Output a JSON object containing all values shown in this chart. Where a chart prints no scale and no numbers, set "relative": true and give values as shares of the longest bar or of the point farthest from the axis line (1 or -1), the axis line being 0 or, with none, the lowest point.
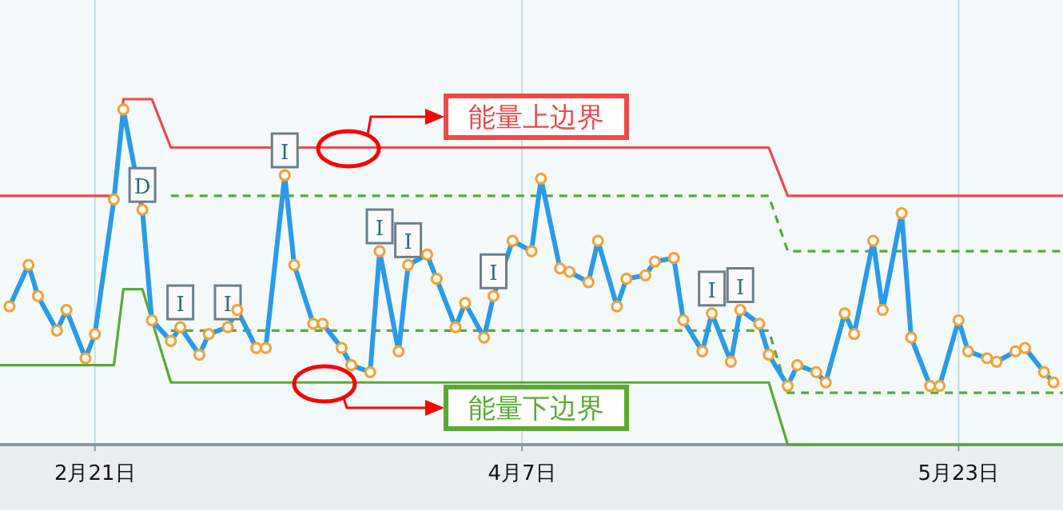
{
  "chart_data": {
    "type": "line",
    "relative": true,
    "grid": "x",
    "xlim": [
      "--02-11",
      "--06-03"
    ],
    "xticks": [
      {
        "value": "--02-21",
        "label": "2月21日"
      },
      {
        "value": "--04-07",
        "label": "4月7日"
      },
      {
        "value": "--05-23",
        "label": "5月23日"
      }
    ],
    "x": [
      "--02-12",
      "--02-14",
      "--02-15",
      "--02-17",
      "--02-18",
      "--02-20",
      "--02-21",
      "--02-23",
      "--02-24",
      "--02-26",
      "--02-27",
      "--03-01",
      "--03-02",
      "--03-04",
      "--03-05",
      "--03-07",
      "--03-08",
      "--03-10",
      "--03-11",
      "--03-13",
      "--03-14",
      "--03-16",
      "--03-17",
      "--03-19",
      "--03-20",
      "--03-22",
      "--03-23",
      "--03-25",
      "--03-26",
      "--03-28",
      "--03-29",
      "--03-31",
      "--04-01",
      "--04-03",
      "--04-04",
      "--04-06",
      "--04-08",
      "--04-09",
      "--04-11",
      "--04-12",
      "--04-14",
      "--04-15",
      "--04-17",
      "--04-18",
      "--04-20",
      "--04-21",
      "--04-23",
      "--04-24",
      "--04-26",
      "--04-27",
      "--04-29",
      "--04-30",
      "--05-02",
      "--05-03",
      "--05-05",
      "--05-06",
      "--05-08",
      "--05-09",
      "--05-11",
      "--05-12",
      "--05-14",
      "--05-15",
      "--05-17",
      "--05-18",
      "--05-20",
      "--05-21",
      "--05-23",
      "--05-24",
      "--05-26",
      "--05-27",
      "--05-29",
      "--05-30",
      "--06-01",
      "--06-02"
    ],
    "series": [
      {
        "color": "#2a9be8",
        "marker": "circle",
        "values": [
          0.4,
          0.52,
          0.43,
          0.33,
          0.39,
          0.25,
          0.32,
          0.71,
          0.97,
          0.68,
          0.36,
          0.3,
          0.34,
          0.26,
          0.32,
          0.34,
          0.39,
          0.28,
          0.28,
          0.78,
          0.52,
          0.35,
          0.35,
          0.28,
          0.23,
          0.21,
          0.56,
          0.27,
          0.52,
          0.55,
          0.48,
          0.34,
          0.41,
          0.31,
          0.43,
          0.59,
          0.56,
          0.77,
          0.51,
          0.5,
          0.47,
          0.59,
          0.4,
          0.48,
          0.49,
          0.53,
          0.54,
          0.36,
          0.27,
          0.38,
          0.24,
          0.39,
          0.35,
          0.26,
          0.17,
          0.23,
          0.21,
          0.18,
          0.38,
          0.32,
          0.59,
          0.39,
          0.67,
          0.31,
          0.17,
          0.17,
          0.36,
          0.27,
          0.25,
          0.24,
          0.27,
          0.28,
          0.21,
          0.18
        ]
      },
      {
        "color": "#f04848",
        "line_style": "solid",
        "x": [
          "--02-11",
          "--02-23",
          "--02-24",
          "--02-27",
          "--03-01",
          "--05-03",
          "--05-05",
          "--06-03"
        ],
        "values": [
          0.72,
          0.72,
          1.0,
          1.0,
          0.86,
          0.86,
          0.72,
          0.72
        ]
      },
      {
        "color": "#5aaa32",
        "line_style": "solid",
        "x": [
          "--02-11",
          "--02-23",
          "--02-24",
          "--02-26",
          "--03-01",
          "--05-03",
          "--05-05",
          "--06-03"
        ],
        "values": [
          0.23,
          0.23,
          0.45,
          0.45,
          0.18,
          0.18,
          0,
          0
        ]
      },
      {
        "color": "#5aaa32",
        "line_style": "dashed",
        "x": [
          "--03-01",
          "--05-03",
          "--05-05",
          "--06-03"
        ],
        "values": [
          0.72,
          0.72,
          0.56,
          0.56
        ]
      },
      {
        "color": "#5aaa32",
        "line_style": "dashed",
        "x": [
          "--03-01",
          "--05-03",
          "--05-05",
          "--06-03"
        ],
        "values": [
          0.33,
          0.33,
          0.15,
          0.15
        ]
      }
    ],
    "annotations": [
      "能量上边界",
      "能量下边界",
      {
        "text": "D",
        "x": "--02-26",
        "y": 0.68
      },
      {
        "text": "I",
        "x": "--03-02",
        "y": 0.34
      },
      {
        "text": "I",
        "x": "--03-07",
        "y": 0.34
      },
      {
        "text": "I",
        "x": "--03-13",
        "y": 0.78
      },
      {
        "text": "I",
        "x": "--03-23",
        "y": 0.56
      },
      {
        "text": "I",
        "x": "--03-26",
        "y": 0.52
      },
      {
        "text": "I",
        "x": "--04-04",
        "y": 0.43
      },
      {
        "text": "I",
        "x": "--04-27",
        "y": 0.38
      },
      {
        "text": "I",
        "x": "--04-30",
        "y": 0.39
      }
    ]
  }
}
